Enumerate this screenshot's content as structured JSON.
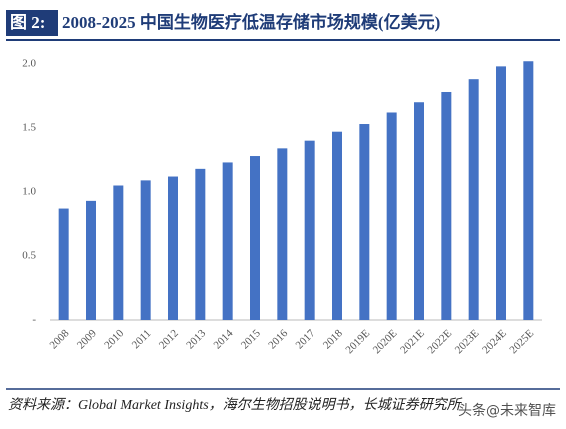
{
  "chart_data": {
    "type": "bar",
    "title_label": "图 2:",
    "title": "2008-2025 中国生物医疗低温存储市场规模(亿美元)",
    "categories": [
      "2008",
      "2009",
      "2010",
      "2011",
      "2012",
      "2013",
      "2014",
      "2015",
      "2016",
      "2017",
      "2018",
      "2019E",
      "2020E",
      "2021E",
      "2022E",
      "2023E",
      "2024E",
      "2025E"
    ],
    "values": [
      0.87,
      0.93,
      1.05,
      1.09,
      1.12,
      1.18,
      1.23,
      1.28,
      1.34,
      1.4,
      1.47,
      1.53,
      1.62,
      1.7,
      1.78,
      1.88,
      1.98,
      2.02
    ],
    "color": "#4472c4",
    "ylim": [
      0,
      2.1
    ],
    "yticks": [
      {
        "value": 0,
        "label": "-"
      },
      0.5,
      {
        "value": 1,
        "label": "1.0"
      },
      1.5,
      {
        "value": 2,
        "label": "2.0"
      }
    ],
    "source": "资料来源：Global Market Insights，海尔生物招股说明书，长城证券研究所",
    "watermark": "头条@未来智库"
  }
}
